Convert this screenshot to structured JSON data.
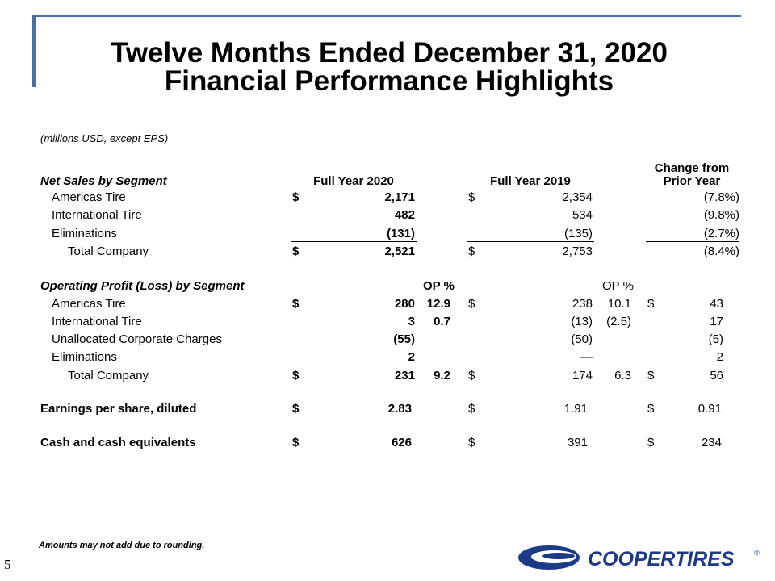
{
  "title": {
    "line1": "Twelve Months Ended December 31, 2020",
    "line2": "Financial Performance Highlights"
  },
  "subtitle": "(millions USD, except EPS)",
  "headers": {
    "net_sales_label": "Net Sales by Segment",
    "full_year_2020": "Full Year 2020",
    "full_year_2019": "Full Year 2019",
    "change_line1": "Change from",
    "change_line2": "Prior Year"
  },
  "net_sales": [
    {
      "label": "Americas Tire",
      "d2020": "$",
      "v2020": "2,171",
      "d2019": "$",
      "v2019": "2,354",
      "change": "(7.8%)"
    },
    {
      "label": "International Tire",
      "d2020": "",
      "v2020": "482",
      "d2019": "",
      "v2019": "534",
      "change": "(9.8%)"
    },
    {
      "label": "Eliminations",
      "d2020": "",
      "v2020": "(131)",
      "d2019": "",
      "v2019": "(135)",
      "change": "(2.7%)"
    },
    {
      "label": "Total Company",
      "d2020": "$",
      "v2020": "2,521",
      "d2019": "$",
      "v2019": "2,753",
      "change": "(8.4%)"
    }
  ],
  "op_headers": {
    "label": "Operating Profit (Loss) by Segment",
    "op_pct_2020": "OP %",
    "op_pct_2019": "OP %"
  },
  "operating_profit": [
    {
      "label": "Americas Tire",
      "d2020": "$",
      "v2020": "280",
      "p2020": "12.9",
      "d2019": "$",
      "v2019": "238",
      "p2019": "10.1",
      "dchg": "$",
      "change": "43"
    },
    {
      "label": "International Tire",
      "d2020": "",
      "v2020": "3",
      "p2020": "0.7",
      "d2019": "",
      "v2019": "(13)",
      "p2019": "(2.5)",
      "dchg": "",
      "change": "17"
    },
    {
      "label": "Unallocated Corporate Charges",
      "d2020": "",
      "v2020": "(55)",
      "p2020": "",
      "d2019": "",
      "v2019": "(50)",
      "p2019": "",
      "dchg": "",
      "change": "(5)"
    },
    {
      "label": "Eliminations",
      "d2020": "",
      "v2020": "2",
      "p2020": "",
      "d2019": "",
      "v2019": "—",
      "p2019": "",
      "dchg": "",
      "change": "2"
    },
    {
      "label": "Total Company",
      "d2020": "$",
      "v2020": "231",
      "p2020": "9.2",
      "d2019": "$",
      "v2019": "174",
      "p2019": "6.3",
      "dchg": "$",
      "change": "56"
    }
  ],
  "eps": {
    "label": "Earnings per share, diluted",
    "d2020": "$",
    "v2020": "2.83",
    "d2019": "$",
    "v2019": "1.91",
    "dchg": "$",
    "change": "0.91"
  },
  "cash": {
    "label": "Cash and cash equivalents",
    "d2020": "$",
    "v2020": "626",
    "d2019": "$",
    "v2019": "391",
    "dchg": "$",
    "change": "234"
  },
  "footnote": "Amounts may not add due to rounding.",
  "page_number": "5",
  "logo": {
    "text": "COOPERTIRES",
    "mark": "®",
    "color": "#1c3a86"
  }
}
